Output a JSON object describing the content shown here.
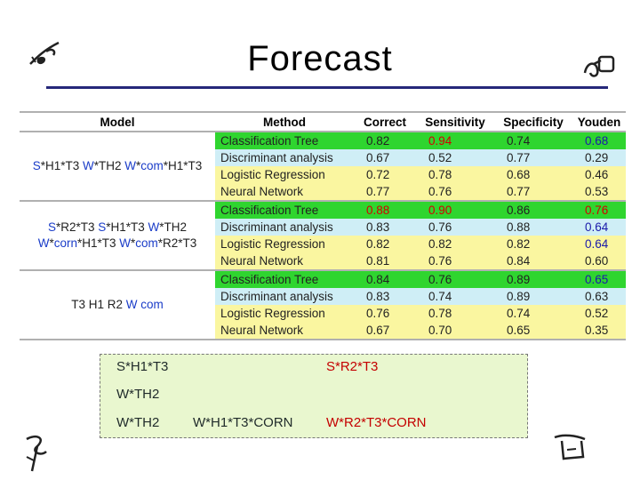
{
  "slide": {
    "title": "Forecast"
  },
  "table": {
    "headers": [
      "Model",
      "Method",
      "Correct",
      "Sensitivity",
      "Specificity",
      "Youden"
    ],
    "groups": [
      {
        "model_parts": [
          [
            {
              "t": "S",
              "c": "blue"
            },
            {
              "t": "*H1*T3 ",
              "c": "dark"
            },
            {
              "t": "W",
              "c": "blue"
            },
            {
              "t": "*TH2 ",
              "c": "dark"
            },
            {
              "t": "W",
              "c": "blue"
            },
            {
              "t": "*",
              "c": "dark"
            },
            {
              "t": "com",
              "c": "blue"
            },
            {
              "t": "*H1*T3",
              "c": "dark"
            }
          ]
        ],
        "rows": [
          {
            "method": "Classification Tree",
            "correct": "0.82",
            "sensitivity": "0.94",
            "specificity": "0.74",
            "youden": "0.68",
            "bg": "green",
            "sens_color": "red",
            "youden_color": "blue"
          },
          {
            "method": "Discriminant analysis",
            "correct": "0.67",
            "sensitivity": "0.52",
            "specificity": "0.77",
            "youden": "0.29",
            "bg": "blue"
          },
          {
            "method": "Logistic Regression",
            "correct": "0.72",
            "sensitivity": "0.78",
            "specificity": "0.68",
            "youden": "0.46",
            "bg": "yellow"
          },
          {
            "method": "Neural Network",
            "correct": "0.77",
            "sensitivity": "0.76",
            "specificity": "0.77",
            "youden": "0.53",
            "bg": "yellow"
          }
        ]
      },
      {
        "model_parts": [
          [
            {
              "t": "S",
              "c": "blue"
            },
            {
              "t": "*R2*T3 ",
              "c": "dark"
            },
            {
              "t": "S",
              "c": "blue"
            },
            {
              "t": "*H1*T3 ",
              "c": "dark"
            },
            {
              "t": "W",
              "c": "blue"
            },
            {
              "t": "*TH2",
              "c": "dark"
            }
          ],
          [
            {
              "t": "W",
              "c": "blue"
            },
            {
              "t": "*",
              "c": "dark"
            },
            {
              "t": "corn",
              "c": "blue"
            },
            {
              "t": "*H1*T3 ",
              "c": "dark"
            },
            {
              "t": "W",
              "c": "blue"
            },
            {
              "t": "*",
              "c": "dark"
            },
            {
              "t": "com",
              "c": "blue"
            },
            {
              "t": "*R2*T3",
              "c": "dark"
            }
          ]
        ],
        "rows": [
          {
            "method": "Classification Tree",
            "correct": "0.88",
            "sensitivity": "0.90",
            "specificity": "0.86",
            "youden": "0.76",
            "bg": "green",
            "correct_color": "red",
            "sens_color": "red",
            "youden_color": "red"
          },
          {
            "method": "Discriminant analysis",
            "correct": "0.83",
            "sensitivity": "0.76",
            "specificity": "0.88",
            "youden": "0.64",
            "bg": "blue",
            "youden_color": "blue"
          },
          {
            "method": "Logistic Regression",
            "correct": "0.82",
            "sensitivity": "0.82",
            "specificity": "0.82",
            "youden": "0.64",
            "bg": "yellow",
            "youden_color": "blue"
          },
          {
            "method": "Neural Network",
            "correct": "0.81",
            "sensitivity": "0.76",
            "specificity": "0.84",
            "youden": "0.60",
            "bg": "yellow"
          }
        ]
      },
      {
        "model_parts": [
          [
            {
              "t": "T3 H1 R2 ",
              "c": "dark"
            },
            {
              "t": "W",
              "c": "blue"
            },
            {
              "t": " com",
              "c": "blue"
            }
          ]
        ],
        "rows": [
          {
            "method": "Classification Tree",
            "correct": "0.84",
            "sensitivity": "0.76",
            "specificity": "0.89",
            "youden": "0.65",
            "bg": "green",
            "youden_color": "blue"
          },
          {
            "method": "Discriminant analysis",
            "correct": "0.83",
            "sensitivity": "0.74",
            "specificity": "0.89",
            "youden": "0.63",
            "bg": "blue"
          },
          {
            "method": "Logistic Regression",
            "correct": "0.76",
            "sensitivity": "0.78",
            "specificity": "0.74",
            "youden": "0.52",
            "bg": "yellow"
          },
          {
            "method": "Neural Network",
            "correct": "0.67",
            "sensitivity": "0.70",
            "specificity": "0.65",
            "youden": "0.35",
            "bg": "yellow"
          }
        ]
      }
    ]
  },
  "formula_box": {
    "line1_left": "S*H1*T3",
    "line1_right": "S*R2*T3",
    "line2": "W*TH2",
    "line3_a": "W*TH2",
    "line3_b": "W*H1*T3*CORN",
    "line3_c": "W*R2*T3*CORN"
  },
  "colors": {
    "title_rule": "#26287a",
    "row_green": "#2fd52f",
    "row_yellow": "#faf6a0",
    "row_blue": "#cfeef6",
    "highlight_red": "#d40000",
    "highlight_blue": "#1a1aaa",
    "box_bg": "#e9f7cf"
  },
  "icons": [
    "hand-drawn-fern-icon",
    "hand-drawn-ornament-icon",
    "hand-drawn-scroll-icon",
    "hand-drawn-curl-icon"
  ]
}
